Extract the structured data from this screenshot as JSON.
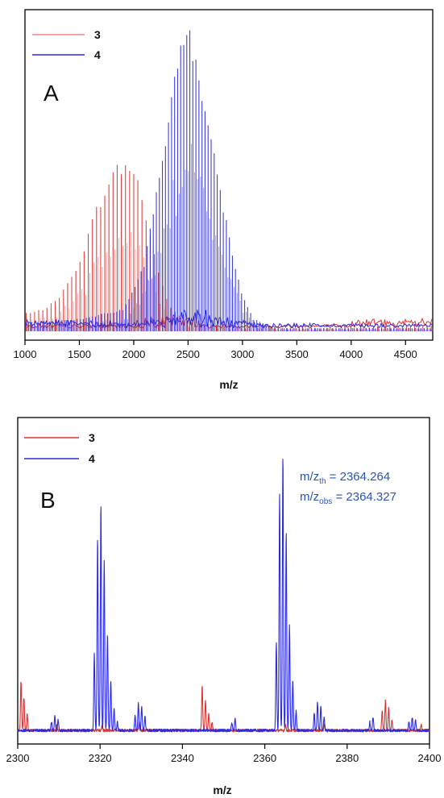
{
  "chart_data": [
    {
      "type": "line",
      "panel_label": "A",
      "xlabel": "m/z",
      "ylabel": "",
      "xlim": [
        1000,
        4750
      ],
      "x_ticks": [
        1000,
        1500,
        2000,
        2500,
        3000,
        3500,
        4000,
        4500
      ],
      "y_axis": "no ticks (relative intensity)",
      "legend": {
        "placement": "top-left",
        "entries": [
          "3",
          "4"
        ]
      },
      "series": [
        {
          "name": "3",
          "color": "#e03030",
          "representation": "comb of peaks (envelope: peak m/z, relative height)",
          "envelope": [
            [
              1050,
              0.06
            ],
            [
              1150,
              0.07
            ],
            [
              1250,
              0.09
            ],
            [
              1350,
              0.13
            ],
            [
              1450,
              0.19
            ],
            [
              1550,
              0.28
            ],
            [
              1650,
              0.39
            ],
            [
              1750,
              0.48
            ],
            [
              1850,
              0.53
            ],
            [
              1950,
              0.55
            ],
            [
              2050,
              0.48
            ],
            [
              2150,
              0.32
            ],
            [
              2250,
              0.16
            ],
            [
              2350,
              0.07
            ],
            [
              2500,
              0.03
            ],
            [
              3000,
              0.01
            ],
            [
              3500,
              0.01
            ],
            [
              4000,
              0.01
            ],
            [
              4500,
              0.02
            ],
            [
              4700,
              0.02
            ]
          ]
        },
        {
          "name": "4",
          "color": "#2a2ae0",
          "representation": "comb of peaks (envelope: peak m/z, relative height)",
          "envelope": [
            [
              1050,
              0.03
            ],
            [
              1500,
              0.04
            ],
            [
              1900,
              0.07
            ],
            [
              2100,
              0.22
            ],
            [
              2200,
              0.42
            ],
            [
              2300,
              0.63
            ],
            [
              2400,
              0.87
            ],
            [
              2500,
              1.0
            ],
            [
              2600,
              0.85
            ],
            [
              2700,
              0.68
            ],
            [
              2800,
              0.45
            ],
            [
              2900,
              0.26
            ],
            [
              3000,
              0.12
            ],
            [
              3100,
              0.04
            ],
            [
              3300,
              0.01
            ],
            [
              4000,
              0.01
            ],
            [
              4700,
              0.01
            ]
          ]
        }
      ]
    },
    {
      "type": "line",
      "panel_label": "B",
      "xlabel": "m/z",
      "ylabel": "",
      "xlim": [
        2300,
        2400
      ],
      "x_ticks": [
        2300,
        2320,
        2340,
        2360,
        2380,
        2400
      ],
      "y_axis": "no ticks (relative intensity)",
      "legend": {
        "placement": "top-left",
        "entries": [
          "3",
          "4"
        ]
      },
      "annotation": {
        "lines": [
          {
            "prefix": "m/z",
            "sub": "th",
            "suffix": " = 2364.264"
          },
          {
            "prefix": "m/z",
            "sub": "obs",
            "suffix": " = 2364.327"
          }
        ],
        "color": "#2a55b5",
        "placement": "top-right"
      },
      "series": [
        {
          "name": "3",
          "color": "#e03030",
          "peaks_mz_height": [
            [
              2300.8,
              0.18
            ],
            [
              2301.5,
              0.12
            ],
            [
              2302.3,
              0.06
            ],
            [
              2309.5,
              0.02
            ],
            [
              2320.5,
              0.02
            ],
            [
              2329.5,
              0.03
            ],
            [
              2344.8,
              0.16
            ],
            [
              2345.6,
              0.11
            ],
            [
              2346.4,
              0.06
            ],
            [
              2347.2,
              0.03
            ],
            [
              2365.0,
              0.02
            ],
            [
              2374.5,
              0.02
            ],
            [
              2388.5,
              0.07
            ],
            [
              2389.3,
              0.11
            ],
            [
              2390.1,
              0.08
            ],
            [
              2390.9,
              0.04
            ],
            [
              2398.0,
              0.02
            ]
          ]
        },
        {
          "name": "4",
          "color": "#2a2ae0",
          "peaks_mz_height": [
            [
              2308.2,
              0.03
            ],
            [
              2309.0,
              0.05
            ],
            [
              2309.8,
              0.04
            ],
            [
              2318.6,
              0.28
            ],
            [
              2319.4,
              0.7
            ],
            [
              2320.2,
              0.82
            ],
            [
              2321.0,
              0.62
            ],
            [
              2321.8,
              0.35
            ],
            [
              2322.6,
              0.18
            ],
            [
              2323.4,
              0.08
            ],
            [
              2324.2,
              0.03
            ],
            [
              2328.5,
              0.05
            ],
            [
              2329.3,
              0.1
            ],
            [
              2330.1,
              0.09
            ],
            [
              2330.9,
              0.05
            ],
            [
              2352.0,
              0.03
            ],
            [
              2352.8,
              0.04
            ],
            [
              2362.8,
              0.32
            ],
            [
              2363.6,
              0.86
            ],
            [
              2364.4,
              1.0
            ],
            [
              2365.2,
              0.72
            ],
            [
              2366.0,
              0.38
            ],
            [
              2366.8,
              0.18
            ],
            [
              2367.6,
              0.07
            ],
            [
              2372.0,
              0.06
            ],
            [
              2372.8,
              0.1
            ],
            [
              2373.6,
              0.09
            ],
            [
              2374.4,
              0.05
            ],
            [
              2385.5,
              0.03
            ],
            [
              2386.3,
              0.05
            ],
            [
              2395.0,
              0.03
            ],
            [
              2395.8,
              0.05
            ],
            [
              2396.6,
              0.04
            ]
          ]
        }
      ]
    }
  ]
}
